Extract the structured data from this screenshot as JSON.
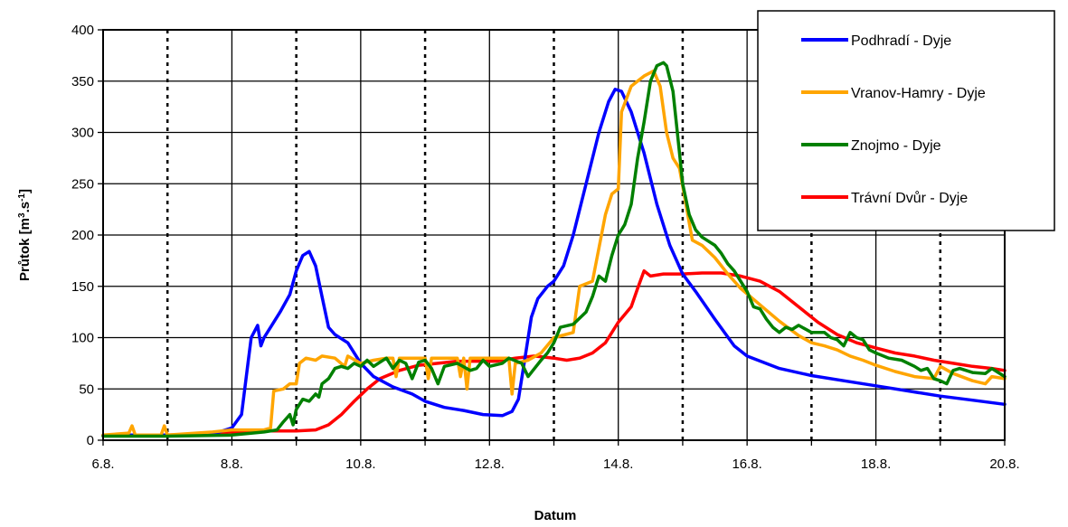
{
  "chart_data": {
    "type": "line",
    "xlabel": "Datum",
    "ylabel_main": "Průtok [m",
    "ylabel_sup1": "3",
    "ylabel_mid": ".s",
    "ylabel_sup2": "-1",
    "ylabel_end": "]",
    "ylim": [
      0,
      400
    ],
    "yticks": [
      0,
      50,
      100,
      150,
      200,
      250,
      300,
      350,
      400
    ],
    "xlim": [
      6,
      20
    ],
    "xticks": [
      {
        "x": 6,
        "label": "6.8."
      },
      {
        "x": 8,
        "label": "8.8."
      },
      {
        "x": 10,
        "label": "10.8."
      },
      {
        "x": 12,
        "label": "12.8."
      },
      {
        "x": 14,
        "label": "14.8."
      },
      {
        "x": 16,
        "label": "16.8."
      },
      {
        "x": 18,
        "label": "18.8."
      },
      {
        "x": 20,
        "label": "20.8."
      }
    ],
    "solid_gridlines_x": [
      8,
      10,
      12,
      14,
      16,
      18
    ],
    "dotted_gridlines_x": [
      7,
      9,
      11,
      13,
      15,
      17,
      19
    ],
    "legend_position": "top-right",
    "series": [
      {
        "name": "Podhradí - Dyje",
        "color": "#0000ff",
        "points": [
          [
            6.0,
            5
          ],
          [
            7.0,
            5
          ],
          [
            7.6,
            5
          ],
          [
            7.8,
            8
          ],
          [
            8.0,
            12
          ],
          [
            8.15,
            25
          ],
          [
            8.25,
            75
          ],
          [
            8.3,
            100
          ],
          [
            8.4,
            112
          ],
          [
            8.45,
            92
          ],
          [
            8.5,
            100
          ],
          [
            8.6,
            110
          ],
          [
            8.75,
            125
          ],
          [
            8.9,
            142
          ],
          [
            9.0,
            165
          ],
          [
            9.1,
            180
          ],
          [
            9.2,
            184
          ],
          [
            9.3,
            170
          ],
          [
            9.4,
            140
          ],
          [
            9.5,
            110
          ],
          [
            9.6,
            103
          ],
          [
            9.8,
            95
          ],
          [
            10.0,
            75
          ],
          [
            10.2,
            62
          ],
          [
            10.5,
            52
          ],
          [
            10.8,
            45
          ],
          [
            11.0,
            38
          ],
          [
            11.3,
            32
          ],
          [
            11.6,
            29
          ],
          [
            11.9,
            25
          ],
          [
            12.2,
            24
          ],
          [
            12.35,
            28
          ],
          [
            12.45,
            40
          ],
          [
            12.55,
            80
          ],
          [
            12.65,
            120
          ],
          [
            12.75,
            138
          ],
          [
            12.9,
            150
          ],
          [
            13.0,
            155
          ],
          [
            13.15,
            170
          ],
          [
            13.3,
            200
          ],
          [
            13.5,
            250
          ],
          [
            13.7,
            300
          ],
          [
            13.85,
            330
          ],
          [
            13.95,
            342
          ],
          [
            14.05,
            340
          ],
          [
            14.2,
            320
          ],
          [
            14.4,
            280
          ],
          [
            14.6,
            230
          ],
          [
            14.8,
            190
          ],
          [
            15.0,
            162
          ],
          [
            15.2,
            145
          ],
          [
            15.5,
            118
          ],
          [
            15.8,
            92
          ],
          [
            16.0,
            82
          ],
          [
            16.5,
            70
          ],
          [
            17.0,
            63
          ],
          [
            17.5,
            58
          ],
          [
            18.0,
            53
          ],
          [
            18.5,
            48
          ],
          [
            19.0,
            43
          ],
          [
            19.5,
            39
          ],
          [
            20.0,
            35
          ]
        ]
      },
      {
        "name": "Vranov-Hamry - Dyje",
        "color": "#ffa500",
        "points": [
          [
            6.0,
            5
          ],
          [
            6.4,
            7
          ],
          [
            6.45,
            14
          ],
          [
            6.5,
            5
          ],
          [
            6.9,
            5
          ],
          [
            6.95,
            14
          ],
          [
            7.0,
            5
          ],
          [
            7.7,
            8
          ],
          [
            8.0,
            10
          ],
          [
            8.5,
            10
          ],
          [
            8.6,
            12
          ],
          [
            8.65,
            48
          ],
          [
            8.8,
            50
          ],
          [
            8.9,
            55
          ],
          [
            9.0,
            55
          ],
          [
            9.05,
            75
          ],
          [
            9.15,
            80
          ],
          [
            9.3,
            78
          ],
          [
            9.4,
            82
          ],
          [
            9.6,
            80
          ],
          [
            9.75,
            72
          ],
          [
            9.8,
            82
          ],
          [
            10.0,
            75
          ],
          [
            10.2,
            78
          ],
          [
            10.4,
            80
          ],
          [
            10.5,
            80
          ],
          [
            10.55,
            62
          ],
          [
            10.6,
            80
          ],
          [
            11.0,
            80
          ],
          [
            11.05,
            60
          ],
          [
            11.1,
            80
          ],
          [
            11.5,
            80
          ],
          [
            11.55,
            62
          ],
          [
            11.6,
            80
          ],
          [
            11.65,
            50
          ],
          [
            11.7,
            80
          ],
          [
            12.2,
            80
          ],
          [
            12.3,
            80
          ],
          [
            12.35,
            45
          ],
          [
            12.4,
            75
          ],
          [
            12.6,
            78
          ],
          [
            12.8,
            85
          ],
          [
            13.0,
            100
          ],
          [
            13.3,
            105
          ],
          [
            13.4,
            150
          ],
          [
            13.6,
            155
          ],
          [
            13.8,
            220
          ],
          [
            13.9,
            240
          ],
          [
            14.0,
            245
          ],
          [
            14.05,
            320
          ],
          [
            14.2,
            345
          ],
          [
            14.4,
            355
          ],
          [
            14.55,
            360
          ],
          [
            14.65,
            345
          ],
          [
            14.75,
            300
          ],
          [
            14.85,
            275
          ],
          [
            14.95,
            265
          ],
          [
            15.05,
            230
          ],
          [
            15.15,
            195
          ],
          [
            15.3,
            190
          ],
          [
            15.5,
            178
          ],
          [
            15.7,
            162
          ],
          [
            15.9,
            148
          ],
          [
            16.2,
            132
          ],
          [
            16.5,
            116
          ],
          [
            16.8,
            102
          ],
          [
            17.0,
            95
          ],
          [
            17.2,
            92
          ],
          [
            17.4,
            88
          ],
          [
            17.6,
            82
          ],
          [
            17.8,
            78
          ],
          [
            18.0,
            73
          ],
          [
            18.3,
            67
          ],
          [
            18.6,
            62
          ],
          [
            18.9,
            60
          ],
          [
            19.0,
            72
          ],
          [
            19.2,
            65
          ],
          [
            19.5,
            58
          ],
          [
            19.7,
            55
          ],
          [
            19.8,
            62
          ],
          [
            20.0,
            60
          ]
        ]
      },
      {
        "name": "Znojmo - Dyje",
        "color": "#008000",
        "points": [
          [
            6.0,
            4
          ],
          [
            7.0,
            4
          ],
          [
            8.0,
            5
          ],
          [
            8.5,
            8
          ],
          [
            8.7,
            10
          ],
          [
            8.8,
            18
          ],
          [
            8.9,
            25
          ],
          [
            8.95,
            15
          ],
          [
            9.0,
            30
          ],
          [
            9.1,
            40
          ],
          [
            9.2,
            38
          ],
          [
            9.3,
            45
          ],
          [
            9.35,
            42
          ],
          [
            9.4,
            55
          ],
          [
            9.5,
            60
          ],
          [
            9.6,
            70
          ],
          [
            9.7,
            72
          ],
          [
            9.8,
            70
          ],
          [
            9.9,
            75
          ],
          [
            10.0,
            72
          ],
          [
            10.1,
            78
          ],
          [
            10.2,
            72
          ],
          [
            10.3,
            76
          ],
          [
            10.4,
            80
          ],
          [
            10.5,
            70
          ],
          [
            10.6,
            78
          ],
          [
            10.7,
            75
          ],
          [
            10.8,
            60
          ],
          [
            10.9,
            76
          ],
          [
            11.0,
            78
          ],
          [
            11.1,
            70
          ],
          [
            11.2,
            55
          ],
          [
            11.3,
            72
          ],
          [
            11.5,
            75
          ],
          [
            11.7,
            68
          ],
          [
            11.8,
            70
          ],
          [
            11.9,
            78
          ],
          [
            12.0,
            72
          ],
          [
            12.2,
            75
          ],
          [
            12.3,
            80
          ],
          [
            12.5,
            75
          ],
          [
            12.6,
            62
          ],
          [
            12.7,
            70
          ],
          [
            12.8,
            78
          ],
          [
            12.9,
            85
          ],
          [
            13.0,
            95
          ],
          [
            13.1,
            110
          ],
          [
            13.3,
            113
          ],
          [
            13.5,
            125
          ],
          [
            13.6,
            140
          ],
          [
            13.7,
            160
          ],
          [
            13.8,
            155
          ],
          [
            13.9,
            180
          ],
          [
            14.0,
            200
          ],
          [
            14.1,
            210
          ],
          [
            14.2,
            230
          ],
          [
            14.3,
            275
          ],
          [
            14.4,
            310
          ],
          [
            14.5,
            350
          ],
          [
            14.6,
            365
          ],
          [
            14.7,
            368
          ],
          [
            14.75,
            365
          ],
          [
            14.85,
            340
          ],
          [
            14.9,
            310
          ],
          [
            14.95,
            280
          ],
          [
            15.0,
            250
          ],
          [
            15.1,
            220
          ],
          [
            15.2,
            205
          ],
          [
            15.3,
            198
          ],
          [
            15.5,
            190
          ],
          [
            15.6,
            182
          ],
          [
            15.7,
            172
          ],
          [
            15.8,
            165
          ],
          [
            15.9,
            155
          ],
          [
            16.0,
            145
          ],
          [
            16.1,
            130
          ],
          [
            16.2,
            128
          ],
          [
            16.3,
            118
          ],
          [
            16.4,
            110
          ],
          [
            16.5,
            105
          ],
          [
            16.6,
            110
          ],
          [
            16.7,
            108
          ],
          [
            16.8,
            112
          ],
          [
            17.0,
            105
          ],
          [
            17.2,
            105
          ],
          [
            17.3,
            100
          ],
          [
            17.4,
            98
          ],
          [
            17.5,
            92
          ],
          [
            17.6,
            105
          ],
          [
            17.7,
            100
          ],
          [
            17.8,
            98
          ],
          [
            17.9,
            88
          ],
          [
            18.0,
            85
          ],
          [
            18.2,
            80
          ],
          [
            18.4,
            78
          ],
          [
            18.6,
            72
          ],
          [
            18.7,
            68
          ],
          [
            18.8,
            70
          ],
          [
            18.9,
            60
          ],
          [
            19.0,
            58
          ],
          [
            19.1,
            55
          ],
          [
            19.2,
            68
          ],
          [
            19.3,
            70
          ],
          [
            19.5,
            66
          ],
          [
            19.7,
            65
          ],
          [
            19.8,
            70
          ],
          [
            20.0,
            62
          ]
        ]
      },
      {
        "name": "Trávní Dvůr - Dyje",
        "color": "#ff0000",
        "points": [
          [
            6.0,
            5
          ],
          [
            6.5,
            5
          ],
          [
            7.0,
            5
          ],
          [
            7.5,
            6
          ],
          [
            8.0,
            8
          ],
          [
            8.5,
            9
          ],
          [
            9.0,
            9
          ],
          [
            9.3,
            10
          ],
          [
            9.5,
            15
          ],
          [
            9.7,
            25
          ],
          [
            9.9,
            38
          ],
          [
            10.1,
            50
          ],
          [
            10.3,
            60
          ],
          [
            10.6,
            68
          ],
          [
            10.9,
            73
          ],
          [
            11.2,
            75
          ],
          [
            11.5,
            77
          ],
          [
            11.8,
            77
          ],
          [
            12.1,
            77
          ],
          [
            12.4,
            80
          ],
          [
            12.7,
            82
          ],
          [
            13.0,
            80
          ],
          [
            13.2,
            78
          ],
          [
            13.4,
            80
          ],
          [
            13.6,
            85
          ],
          [
            13.8,
            95
          ],
          [
            14.0,
            115
          ],
          [
            14.2,
            130
          ],
          [
            14.3,
            148
          ],
          [
            14.4,
            165
          ],
          [
            14.5,
            160
          ],
          [
            14.7,
            162
          ],
          [
            15.0,
            162
          ],
          [
            15.3,
            163
          ],
          [
            15.6,
            163
          ],
          [
            15.9,
            160
          ],
          [
            16.2,
            155
          ],
          [
            16.5,
            145
          ],
          [
            16.8,
            130
          ],
          [
            17.1,
            115
          ],
          [
            17.4,
            103
          ],
          [
            17.7,
            95
          ],
          [
            18.0,
            90
          ],
          [
            18.3,
            85
          ],
          [
            18.6,
            82
          ],
          [
            18.9,
            78
          ],
          [
            19.2,
            75
          ],
          [
            19.5,
            72
          ],
          [
            19.8,
            70
          ],
          [
            20.0,
            68
          ]
        ]
      }
    ]
  }
}
